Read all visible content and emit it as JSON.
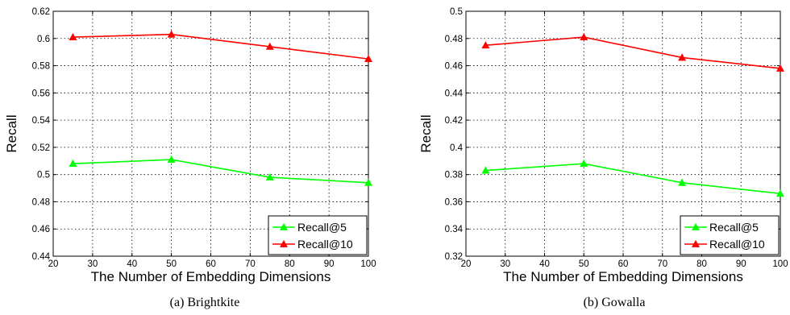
{
  "chart_data": [
    {
      "type": "line",
      "caption": "(a) Brightkite",
      "xlabel": "The Number of Embedding Dimensions",
      "ylabel": "Recall",
      "xlim": [
        20,
        100
      ],
      "ylim": [
        0.44,
        0.62
      ],
      "xticks": [
        20,
        30,
        40,
        50,
        60,
        70,
        80,
        90,
        100
      ],
      "yticks": [
        0.44,
        0.46,
        0.48,
        0.5,
        0.52,
        0.54,
        0.56,
        0.58,
        0.6,
        0.62
      ],
      "ytick_labels": [
        "0.44",
        "0.46",
        "0.48",
        "0.5",
        "0.52",
        "0.54",
        "0.56",
        "0.58",
        "0.6",
        "0.62"
      ],
      "grid": true,
      "legend_position": "bottom-right",
      "x": [
        25,
        50,
        75,
        100
      ],
      "series": [
        {
          "name": "Recall@5",
          "color": "#00ff00",
          "marker": "triangle",
          "values": [
            0.508,
            0.511,
            0.498,
            0.494
          ]
        },
        {
          "name": "Recall@10",
          "color": "#ff0000",
          "marker": "triangle",
          "values": [
            0.601,
            0.603,
            0.594,
            0.585
          ]
        }
      ]
    },
    {
      "type": "line",
      "caption": "(b) Gowalla",
      "xlabel": "The Number of Embedding Dimensions",
      "ylabel": "Recall",
      "xlim": [
        20,
        100
      ],
      "ylim": [
        0.32,
        0.5
      ],
      "xticks": [
        20,
        30,
        40,
        50,
        60,
        70,
        80,
        90,
        100
      ],
      "yticks": [
        0.32,
        0.34,
        0.36,
        0.38,
        0.4,
        0.42,
        0.44,
        0.46,
        0.48,
        0.5
      ],
      "ytick_labels": [
        "0.32",
        "0.34",
        "0.36",
        "0.38",
        "0.4",
        "0.42",
        "0.44",
        "0.46",
        "0.48",
        "0.5"
      ],
      "grid": true,
      "legend_position": "bottom-right",
      "x": [
        25,
        50,
        75,
        100
      ],
      "series": [
        {
          "name": "Recall@5",
          "color": "#00ff00",
          "marker": "triangle",
          "values": [
            0.383,
            0.388,
            0.374,
            0.366
          ]
        },
        {
          "name": "Recall@10",
          "color": "#ff0000",
          "marker": "triangle",
          "values": [
            0.475,
            0.481,
            0.466,
            0.458
          ]
        }
      ]
    }
  ]
}
